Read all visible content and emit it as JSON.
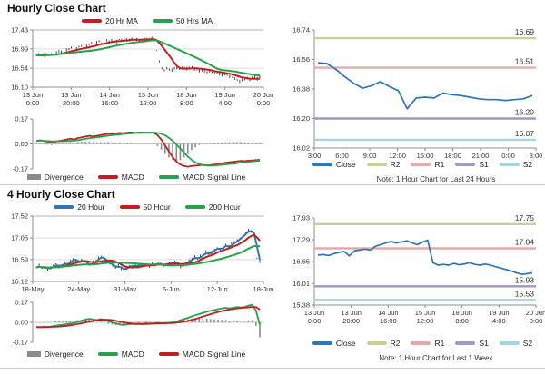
{
  "colors": {
    "red": "#c02020",
    "green": "#27a24c",
    "blue": "#2f76b5",
    "olive": "#c9cf97",
    "pink": "#e4abab",
    "purple": "#a198c8",
    "cyan": "#a5d6de",
    "gray": "#8c8c8c",
    "bar": "#1c1c1c",
    "grid": "#dcdcdc",
    "axis": "#8f8f8f"
  },
  "chart_data": [
    {
      "id": "hourly-price",
      "type": "price",
      "title": "Hourly Close Chart",
      "ylim": [
        16.1,
        17.43
      ],
      "y_ticks": [
        17.43,
        16.99,
        16.54,
        16.1
      ],
      "x_tick_labels": [
        [
          "13 Jun",
          "0:00"
        ],
        [
          "13 Jun",
          "20:00"
        ],
        [
          "14 Jun",
          "16:00"
        ],
        [
          "15 Jun",
          "12:00"
        ],
        [
          "18 Jun",
          "8:00"
        ],
        [
          "19 Jun",
          "4:00"
        ],
        [
          "20 Jun",
          "0:00"
        ]
      ],
      "close": [
        16.84,
        16.85,
        16.83,
        16.85,
        16.86,
        16.85,
        16.86,
        16.88,
        16.91,
        16.95,
        16.92,
        16.94,
        16.97,
        16.99,
        17.02,
        16.98,
        17.0,
        17.04,
        17.06,
        17.03,
        17.05,
        17.08,
        17.12,
        17.1,
        17.14,
        17.17,
        17.13,
        17.16,
        17.19,
        17.15,
        17.18,
        17.2,
        17.17,
        17.21,
        17.18,
        17.22,
        17.19,
        17.21,
        17.23,
        17.2,
        17.22,
        17.18,
        17.21,
        17.24,
        17.2,
        17.22,
        17.25,
        17.21,
        16.95,
        16.7,
        16.55,
        16.5,
        16.55,
        16.52,
        16.5,
        16.53,
        16.55,
        16.52,
        16.54,
        16.56,
        16.53,
        16.55,
        16.57,
        16.52,
        16.5,
        16.48,
        16.5,
        16.47,
        16.45,
        16.47,
        16.44,
        16.42,
        16.44,
        16.41,
        16.39,
        16.41,
        16.38,
        16.35,
        16.33,
        16.3,
        16.27,
        16.24,
        16.28,
        16.3,
        16.32,
        16.29,
        16.31,
        16.33,
        16.3,
        16.32
      ],
      "ma": [
        {
          "name": "20 Hr MA",
          "color": "red",
          "window": 9
        },
        {
          "name": "50 Hrs MA",
          "color": "green",
          "window": 25
        }
      ]
    },
    {
      "id": "hourly-macd",
      "type": "macd",
      "ylim": [
        -0.17,
        0.17
      ],
      "y_ticks": [
        0.17,
        0.0,
        -0.17
      ],
      "macd": [
        0.02,
        0.025,
        0.02,
        0.015,
        0.01,
        0.015,
        0.02,
        0.025,
        0.03,
        0.035,
        0.03,
        0.04,
        0.045,
        0.05,
        0.055,
        0.05,
        0.055,
        0.06,
        0.065,
        0.07,
        0.068,
        0.072,
        0.075,
        0.073,
        0.076,
        0.078,
        0.075,
        0.077,
        0.078,
        0.076,
        0.077,
        0.075,
        0.06,
        0.03,
        -0.01,
        -0.05,
        -0.09,
        -0.12,
        -0.14,
        -0.15,
        -0.155,
        -0.15,
        -0.148,
        -0.145,
        -0.143,
        -0.146,
        -0.144,
        -0.14,
        -0.138,
        -0.132,
        -0.128,
        -0.124,
        -0.122,
        -0.118,
        -0.115,
        -0.117,
        -0.114,
        -0.112,
        -0.11,
        -0.108
      ],
      "signal_window": 8,
      "macd_color": "red",
      "signal_color": "green",
      "legend": [
        {
          "label": "Divergence",
          "color": "gray",
          "kind": "bar"
        },
        {
          "label": "MACD",
          "color": "red"
        },
        {
          "label": "MACD Signal Line",
          "color": "green"
        }
      ]
    },
    {
      "id": "hourly-levels",
      "type": "levels",
      "ylim": [
        16.02,
        16.74
      ],
      "y_ticks": [
        16.74,
        16.56,
        16.38,
        16.2,
        16.02
      ],
      "x_tick_labels": [
        [
          "3:00"
        ],
        [
          "6:00"
        ],
        [
          "9:00"
        ],
        [
          "12:00"
        ],
        [
          "15:00"
        ],
        [
          "18:00"
        ],
        [
          "21:00"
        ],
        [
          "0:00"
        ],
        [
          "3:00"
        ]
      ],
      "close": [
        16.54,
        16.535,
        16.5,
        16.455,
        16.415,
        16.385,
        16.4,
        16.425,
        16.395,
        16.37,
        16.26,
        16.325,
        16.33,
        16.325,
        16.355,
        16.345,
        16.34,
        16.33,
        16.32,
        16.315,
        16.315,
        16.31,
        16.315,
        16.32,
        16.34
      ],
      "levels": [
        {
          "name": "R2",
          "value": 16.69,
          "color": "olive"
        },
        {
          "name": "R1",
          "value": 16.51,
          "color": "pink"
        },
        {
          "name": "S1",
          "value": 16.2,
          "color": "purple"
        },
        {
          "name": "S2",
          "value": 16.07,
          "color": "cyan"
        }
      ],
      "legend": [
        {
          "label": "Close",
          "color": "blue"
        },
        {
          "label": "R2",
          "color": "olive"
        },
        {
          "label": "R1",
          "color": "pink"
        },
        {
          "label": "S1",
          "color": "purple"
        },
        {
          "label": "S2",
          "color": "cyan"
        }
      ],
      "note": "Note: 1 Hour Chart for Last 24 Hours"
    },
    {
      "id": "4hourly-price",
      "type": "price",
      "title": "4 Hourly Close Chart",
      "ylim": [
        16.12,
        17.52
      ],
      "y_ticks": [
        17.52,
        17.05,
        16.59,
        16.12
      ],
      "x_tick_labels": [
        [
          "18-May"
        ],
        [
          "24-May"
        ],
        [
          "31-May"
        ],
        [
          "6-Jun"
        ],
        [
          "12-Jun"
        ],
        [
          "18-Jun"
        ]
      ],
      "close": [
        16.42,
        16.45,
        16.4,
        16.43,
        16.38,
        16.42,
        16.45,
        16.48,
        16.44,
        16.47,
        16.52,
        16.48,
        16.55,
        16.6,
        16.57,
        16.53,
        16.58,
        16.55,
        16.5,
        16.47,
        16.52,
        16.56,
        16.62,
        16.65,
        16.6,
        16.55,
        16.5,
        16.46,
        16.42,
        16.45,
        16.4,
        16.37,
        16.42,
        16.46,
        16.43,
        16.47,
        16.44,
        16.48,
        16.45,
        16.49,
        16.46,
        16.5,
        16.47,
        16.52,
        16.48,
        16.45,
        16.49,
        16.53,
        16.5,
        16.55,
        16.49,
        16.44,
        16.48,
        16.52,
        16.56,
        16.6,
        16.64,
        16.6,
        16.66,
        16.7,
        16.74,
        16.7,
        16.76,
        16.8,
        16.84,
        16.8,
        16.86,
        16.9,
        16.85,
        16.92,
        16.96,
        17.0,
        17.05,
        17.1,
        17.16,
        17.22,
        17.18,
        17.12,
        16.62,
        16.55
      ],
      "ma": [
        {
          "name": "20 Hour",
          "color": "blue",
          "window": 2
        },
        {
          "name": "50 Hour",
          "color": "red",
          "window": 7
        },
        {
          "name": "200 Hour",
          "color": "green",
          "window": 23
        }
      ]
    },
    {
      "id": "4hourly-macd",
      "type": "macd",
      "ylim": [
        -0.17,
        0.17
      ],
      "y_ticks": [
        0.17,
        0.0,
        -0.17
      ],
      "macd": [
        -0.04,
        -0.042,
        -0.038,
        -0.04,
        -0.035,
        -0.03,
        -0.025,
        -0.02,
        -0.015,
        -0.01,
        -0.005,
        0.005,
        0.015,
        0.025,
        0.03,
        0.025,
        0.02,
        0.028,
        0.02,
        0.01,
        0.0,
        -0.01,
        -0.018,
        -0.022,
        -0.018,
        -0.015,
        -0.012,
        -0.01,
        -0.012,
        -0.008,
        -0.01,
        -0.008,
        -0.005,
        -0.008,
        -0.006,
        -0.004,
        0.0,
        0.008,
        0.018,
        0.028,
        0.038,
        0.05,
        0.06,
        0.07,
        0.08,
        0.09,
        0.098,
        0.105,
        0.112,
        0.118,
        0.124,
        0.118,
        0.124,
        0.13,
        0.126,
        0.13,
        0.142,
        0.15,
        0.1,
        -0.02
      ],
      "signal_window": 7,
      "macd_color": "green",
      "signal_color": "red",
      "legend": [
        {
          "label": "Divergence",
          "color": "gray",
          "kind": "bar"
        },
        {
          "label": "MACD",
          "color": "green"
        },
        {
          "label": "MACD Signal Line",
          "color": "red"
        }
      ]
    },
    {
      "id": "weekly-levels",
      "type": "levels",
      "ylim": [
        15.38,
        17.93
      ],
      "y_ticks": [
        17.93,
        17.29,
        16.65,
        16.01,
        15.38
      ],
      "x_tick_labels": [
        [
          "13 Jun",
          "0:00"
        ],
        [
          "13 Jun",
          "20:00"
        ],
        [
          "14 Jun",
          "16:00"
        ],
        [
          "15 Jun",
          "12:00"
        ],
        [
          "18 Jun",
          "8:00"
        ],
        [
          "19 Jun",
          "4:00"
        ],
        [
          "20 Jun",
          "0:00"
        ]
      ],
      "close": [
        16.84,
        16.86,
        16.83,
        16.88,
        16.92,
        16.95,
        16.82,
        16.97,
        16.99,
        17.02,
        16.99,
        17.1,
        17.15,
        17.2,
        17.24,
        17.2,
        17.23,
        17.26,
        17.2,
        17.15,
        17.22,
        17.28,
        16.62,
        16.55,
        16.57,
        16.55,
        16.6,
        16.56,
        16.58,
        16.62,
        16.57,
        16.55,
        16.58,
        16.55,
        16.5,
        16.46,
        16.42,
        16.38,
        16.32,
        16.28,
        16.3,
        16.32
      ],
      "levels": [
        {
          "name": "R2",
          "value": 17.75,
          "color": "olive"
        },
        {
          "name": "R1",
          "value": 17.04,
          "color": "pink"
        },
        {
          "name": "S1",
          "value": 15.93,
          "color": "purple"
        },
        {
          "name": "S2",
          "value": 15.53,
          "color": "cyan"
        }
      ],
      "legend": [
        {
          "label": "Close",
          "color": "blue"
        },
        {
          "label": "R2",
          "color": "olive"
        },
        {
          "label": "R1",
          "color": "pink"
        },
        {
          "label": "S1",
          "color": "purple"
        },
        {
          "label": "S2",
          "color": "cyan"
        }
      ],
      "note": "Note: 1 Hour Chart for Last 1 Week"
    }
  ]
}
